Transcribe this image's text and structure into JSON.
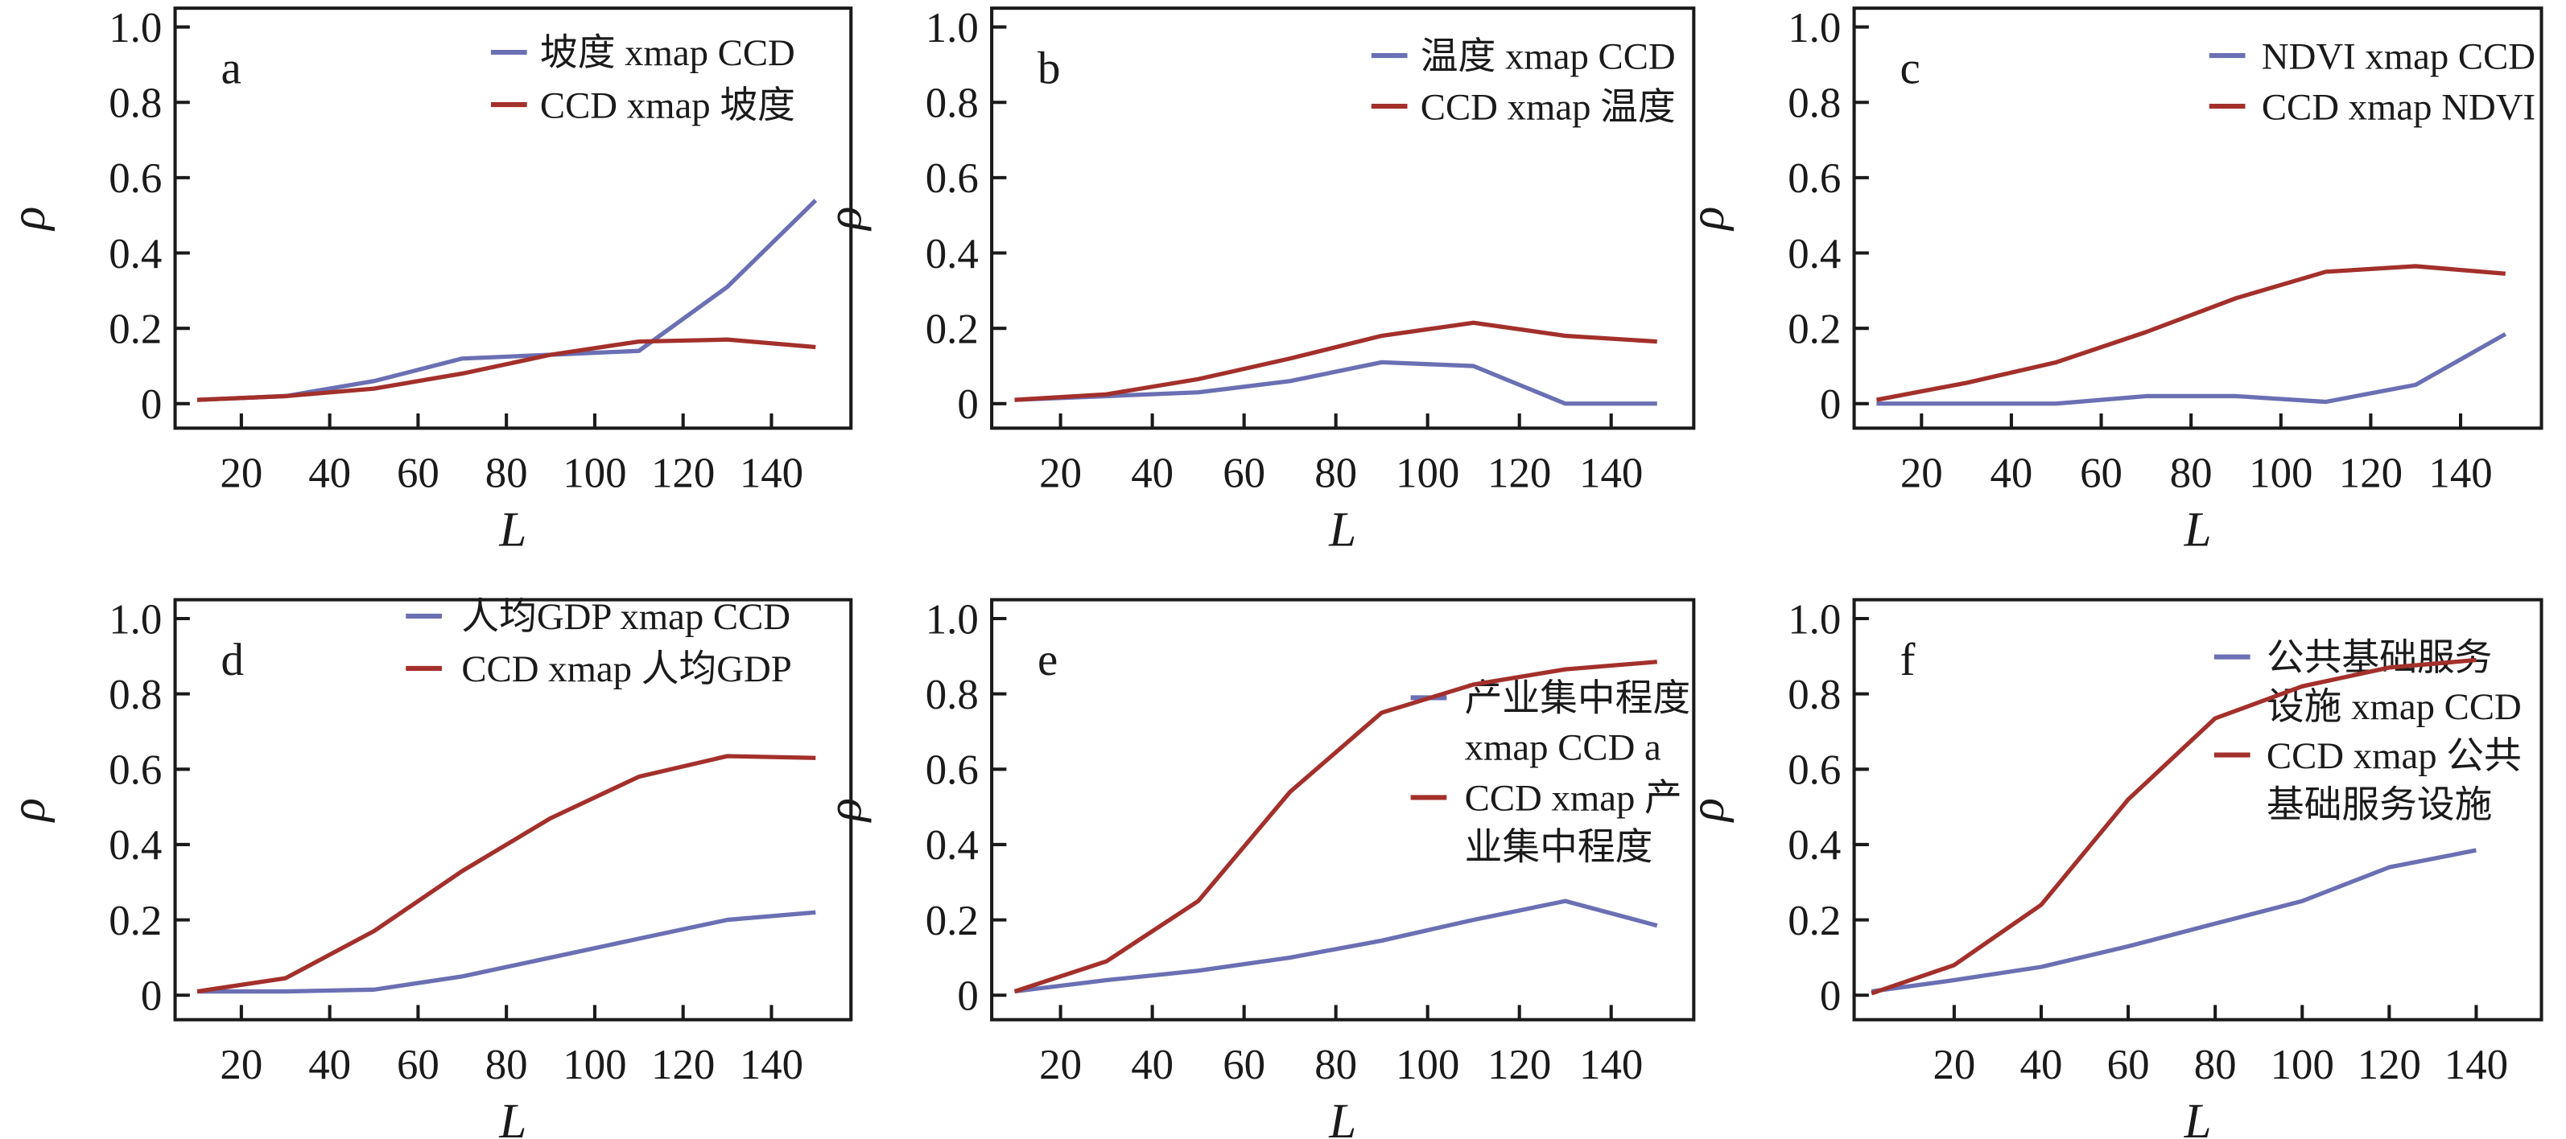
{
  "colors": {
    "xmap_forward": "#6b6fb3",
    "xmap_reverse": "#a3302b",
    "axis": "#1a1a1a"
  },
  "chart_data": [
    {
      "type": "line",
      "panel": "a",
      "xlabel": "L",
      "ylabel": "ρ",
      "xlim": [
        5,
        158
      ],
      "ylim": [
        -0.065,
        1.05
      ],
      "xticks": [
        "20",
        "40",
        "60",
        "80",
        "100",
        "120",
        "140"
      ],
      "yticks": [
        "0",
        "0.2",
        "0.4",
        "0.6",
        "0.8",
        "1.0"
      ],
      "legend_placement": "top-right",
      "x": [
        10,
        30,
        50,
        70,
        90,
        110,
        130,
        150
      ],
      "series": [
        {
          "name": "坡度 xmap CCD",
          "name_lines": [
            "坡度 xmap CCD"
          ],
          "values": [
            0.01,
            0.02,
            0.06,
            0.12,
            0.13,
            0.14,
            0.31,
            0.54
          ]
        },
        {
          "name": "CCD xmap 坡度",
          "name_lines": [
            "CCD xmap 坡度"
          ],
          "values": [
            0.01,
            0.02,
            0.04,
            0.08,
            0.13,
            0.165,
            0.17,
            0.15
          ]
        }
      ]
    },
    {
      "type": "line",
      "panel": "b",
      "xlabel": "L",
      "ylabel": "ρ",
      "xlim": [
        5,
        158
      ],
      "ylim": [
        -0.065,
        1.05
      ],
      "xticks": [
        "20",
        "40",
        "60",
        "80",
        "100",
        "120",
        "140"
      ],
      "yticks": [
        "0",
        "0.2",
        "0.4",
        "0.6",
        "0.8",
        "1.0"
      ],
      "legend_placement": "top-right",
      "x": [
        10,
        30,
        50,
        70,
        90,
        110,
        130,
        150
      ],
      "series": [
        {
          "name": "温度 xmap CCD",
          "name_lines": [
            "温度 xmap CCD"
          ],
          "values": [
            0.01,
            0.02,
            0.03,
            0.06,
            0.11,
            0.1,
            0.0,
            0.0
          ]
        },
        {
          "name": "CCD xmap 温度",
          "name_lines": [
            "CCD xmap 温度"
          ],
          "values": [
            0.01,
            0.025,
            0.065,
            0.12,
            0.18,
            0.215,
            0.18,
            0.165
          ]
        }
      ]
    },
    {
      "type": "line",
      "panel": "c",
      "xlabel": "L",
      "ylabel": "ρ",
      "xlim": [
        5,
        158
      ],
      "ylim": [
        -0.065,
        1.05
      ],
      "xticks": [
        "20",
        "40",
        "60",
        "80",
        "100",
        "120",
        "140"
      ],
      "yticks": [
        "0",
        "0.2",
        "0.4",
        "0.6",
        "0.8",
        "1.0"
      ],
      "legend_placement": "top-right",
      "x": [
        10,
        30,
        50,
        70,
        90,
        110,
        130,
        150
      ],
      "series": [
        {
          "name": "NDVI xmap CCD",
          "name_lines": [
            "NDVI xmap CCD"
          ],
          "values": [
            0.0,
            0.0,
            0.0,
            0.02,
            0.02,
            0.005,
            0.05,
            0.185
          ]
        },
        {
          "name": "CCD xmap NDVI",
          "name_lines": [
            "CCD xmap NDVI"
          ],
          "values": [
            0.01,
            0.055,
            0.11,
            0.19,
            0.28,
            0.35,
            0.365,
            0.345
          ]
        }
      ]
    },
    {
      "type": "line",
      "panel": "d",
      "xlabel": "L",
      "ylabel": "ρ",
      "xlim": [
        5,
        158
      ],
      "ylim": [
        -0.065,
        1.05
      ],
      "xticks": [
        "20",
        "40",
        "60",
        "80",
        "100",
        "120",
        "140"
      ],
      "yticks": [
        "0",
        "0.2",
        "0.4",
        "0.6",
        "0.8",
        "1.0"
      ],
      "legend_placement": "top-right",
      "x": [
        10,
        30,
        50,
        70,
        90,
        110,
        130,
        150
      ],
      "series": [
        {
          "name": "人均GDP xmap CCD",
          "name_lines": [
            "人均GDP xmap CCD"
          ],
          "values": [
            0.01,
            0.01,
            0.015,
            0.05,
            0.1,
            0.15,
            0.2,
            0.22
          ]
        },
        {
          "name": "CCD xmap 人均GDP",
          "name_lines": [
            "CCD xmap 人均GDP"
          ],
          "values": [
            0.01,
            0.045,
            0.17,
            0.33,
            0.47,
            0.58,
            0.635,
            0.63
          ]
        }
      ]
    },
    {
      "type": "line",
      "panel": "e",
      "xlabel": "L",
      "ylabel": "ρ",
      "xlim": [
        5,
        158
      ],
      "ylim": [
        -0.065,
        1.05
      ],
      "xticks": [
        "20",
        "40",
        "60",
        "80",
        "100",
        "120",
        "140"
      ],
      "yticks": [
        "0",
        "0.2",
        "0.4",
        "0.6",
        "0.8",
        "1.0"
      ],
      "legend_placement": "right",
      "x": [
        10,
        30,
        50,
        70,
        90,
        110,
        130,
        150
      ],
      "series": [
        {
          "name": "产业集中程度 xmap CCD a",
          "name_lines": [
            "产业集中程度",
            "xmap CCD a"
          ],
          "values": [
            0.01,
            0.04,
            0.065,
            0.1,
            0.145,
            0.2,
            0.25,
            0.185
          ]
        },
        {
          "name": "CCD xmap 产业集中程度",
          "name_lines": [
            "CCD xmap 产",
            "业集中程度"
          ],
          "values": [
            0.01,
            0.09,
            0.25,
            0.54,
            0.75,
            0.825,
            0.865,
            0.885
          ]
        }
      ]
    },
    {
      "type": "line",
      "panel": "f",
      "xlabel": "L",
      "ylabel": "ρ",
      "xlim": [
        -3,
        155
      ],
      "ylim": [
        -0.065,
        1.05
      ],
      "xticks": [
        "20",
        "40",
        "60",
        "80",
        "100",
        "120",
        "140"
      ],
      "yticks": [
        "0",
        "0.2",
        "0.4",
        "0.6",
        "0.8",
        "1.0"
      ],
      "legend_placement": "right",
      "x": [
        1,
        20,
        40,
        60,
        80,
        100,
        120,
        140
      ],
      "series": [
        {
          "name": "公共基础服务设施 xmap CCD",
          "name_lines": [
            "公共基础服务",
            "设施 xmap CCD"
          ],
          "values": [
            0.01,
            0.04,
            0.075,
            0.13,
            0.19,
            0.25,
            0.34,
            0.385
          ]
        },
        {
          "name": "CCD xmap 公共基础服务设施",
          "name_lines": [
            "CCD xmap 公共",
            "基础服务设施"
          ],
          "values": [
            0.005,
            0.08,
            0.24,
            0.52,
            0.735,
            0.82,
            0.87,
            0.89
          ]
        }
      ]
    }
  ]
}
